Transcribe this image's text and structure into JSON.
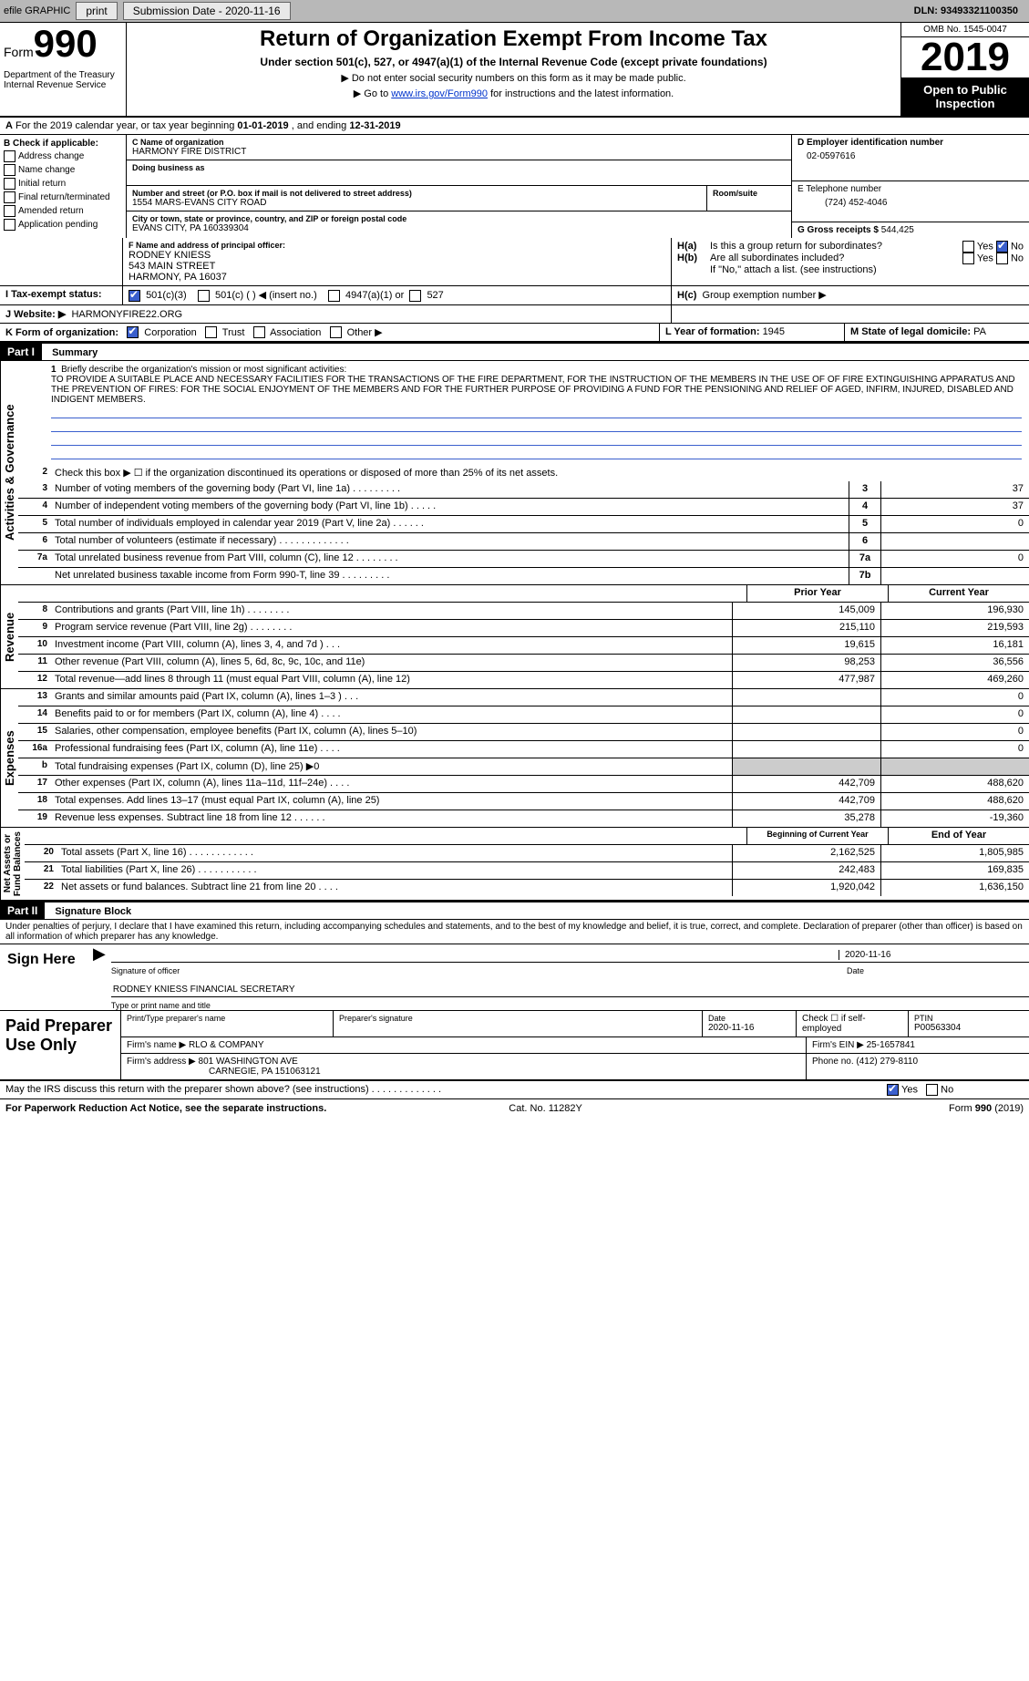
{
  "topbar": {
    "efile": "efile GRAPHIC",
    "print": "print",
    "submission_label": "Submission Date - ",
    "submission_date": "2020-11-16",
    "dln_label": "DLN: ",
    "dln": "93493321100350"
  },
  "header": {
    "form_label": "Form",
    "form_number": "990",
    "title": "Return of Organization Exempt From Income Tax",
    "subtitle": "Under section 501(c), 527, or 4947(a)(1) of the Internal Revenue Code (except private foundations)",
    "note1": "Do not enter social security numbers on this form as it may be made public.",
    "note2_pre": "Go to ",
    "note2_link": "www.irs.gov/Form990",
    "note2_post": " for instructions and the latest information.",
    "dept": "Department of the Treasury\nInternal Revenue Service",
    "omb": "OMB No. 1545-0047",
    "year": "2019",
    "inspection": "Open to Public Inspection"
  },
  "period": {
    "text_a": "For the 2019 calendar year, or tax year beginning ",
    "begin": "01-01-2019",
    "text_b": " , and ending ",
    "end": "12-31-2019"
  },
  "boxB": {
    "label": "B Check if applicable:",
    "opts": [
      "Address change",
      "Name change",
      "Initial return",
      "Final return/terminated",
      "Amended return",
      "Application pending"
    ]
  },
  "boxC": {
    "name_label": "C Name of organization",
    "name": "HARMONY FIRE DISTRICT",
    "dba_label": "Doing business as",
    "addr_label": "Number and street (or P.O. box if mail is not delivered to street address)",
    "room_label": "Room/suite",
    "addr": "1554 MARS-EVANS CITY ROAD",
    "city_label": "City or town, state or province, country, and ZIP or foreign postal code",
    "city": "EVANS CITY, PA  160339304"
  },
  "boxD": {
    "label": "D Employer identification number",
    "value": "02-0597616"
  },
  "boxE": {
    "label": "E Telephone number",
    "value": "(724) 452-4046"
  },
  "boxG": {
    "label": "G Gross receipts $ ",
    "value": "544,425"
  },
  "boxF": {
    "label": "F Name and address of principal officer:",
    "name": "RODNEY KNIESS",
    "street": "543 MAIN STREET",
    "csz": "HARMONY, PA  16037"
  },
  "boxH": {
    "a_label": "H(a)",
    "a_text": "Is this a group return for subordinates?",
    "b_label": "H(b)",
    "b_text": "Are all subordinates included?",
    "note": "If \"No,\" attach a list. (see instructions)",
    "c_label": "H(c)",
    "c_text": "Group exemption number ▶",
    "yes": "Yes",
    "no": "No"
  },
  "boxI": {
    "label": "I  Tax-exempt status:",
    "opt1": "501(c)(3)",
    "opt2": "501(c) (   ) ◀ (insert no.)",
    "opt3": "4947(a)(1) or",
    "opt4": "527"
  },
  "boxJ": {
    "label": "J  Website: ▶",
    "value": "HARMONYFIRE22.ORG"
  },
  "boxK": {
    "label": "K Form of organization:",
    "opts": [
      "Corporation",
      "Trust",
      "Association",
      "Other ▶"
    ]
  },
  "boxL": {
    "label": "L Year of formation: ",
    "value": "1945"
  },
  "boxM": {
    "label": "M State of legal domicile: ",
    "value": "PA"
  },
  "part1": {
    "label": "Part I",
    "title": "Summary"
  },
  "mission": {
    "num": "1",
    "label": "Briefly describe the organization's mission or most significant activities:",
    "text": "TO PROVIDE A SUITABLE PLACE AND NECESSARY FACILITIES FOR THE TRANSACTIONS OF THE FIRE DEPARTMENT, FOR THE INSTRUCTION OF THE MEMBERS IN THE USE OF OF FIRE EXTINGUISHING APPARATUS AND THE PREVENTION OF FIRES: FOR THE SOCIAL ENJOYMENT OF THE MEMBERS AND FOR THE FURTHER PURPOSE OF PROVIDING A FUND FOR THE PENSIONING AND RELIEF OF AGED, INFIRM, INJURED, DISABLED AND INDIGENT MEMBERS."
  },
  "lines": {
    "l2": {
      "num": "2",
      "desc": "Check this box ▶ ☐  if the organization discontinued its operations or disposed of more than 25% of its net assets."
    },
    "l3": {
      "num": "3",
      "desc": "Number of voting members of the governing body (Part VI, line 1a)  .   .   .   .   .   .   .   .   .",
      "box": "3",
      "val": "37"
    },
    "l4": {
      "num": "4",
      "desc": "Number of independent voting members of the governing body (Part VI, line 1b)  .   .   .   .   .",
      "box": "4",
      "val": "37"
    },
    "l5": {
      "num": "5",
      "desc": "Total number of individuals employed in calendar year 2019 (Part V, line 2a)  .   .   .   .   .   .",
      "box": "5",
      "val": "0"
    },
    "l6": {
      "num": "6",
      "desc": "Total number of volunteers (estimate if necessary)  .   .   .   .   .   .   .   .   .   .   .   .   .",
      "box": "6",
      "val": ""
    },
    "l7a": {
      "num": "7a",
      "desc": "Total unrelated business revenue from Part VIII, column (C), line 12  .   .   .   .   .   .   .   .",
      "box": "7a",
      "val": "0"
    },
    "l7b": {
      "num": "",
      "desc": "Net unrelated business taxable income from Form 990-T, line 39  .   .   .   .   .   .   .   .   .",
      "box": "7b",
      "val": ""
    }
  },
  "cols": {
    "prior": "Prior Year",
    "current": "Current Year"
  },
  "revenue": [
    {
      "num": "8",
      "desc": "Contributions and grants (Part VIII, line 1h)  .   .   .   .   .   .   .   .",
      "prior": "145,009",
      "current": "196,930"
    },
    {
      "num": "9",
      "desc": "Program service revenue (Part VIII, line 2g)  .   .   .   .   .   .   .   .",
      "prior": "215,110",
      "current": "219,593"
    },
    {
      "num": "10",
      "desc": "Investment income (Part VIII, column (A), lines 3, 4, and 7d )  .   .   .",
      "prior": "19,615",
      "current": "16,181"
    },
    {
      "num": "11",
      "desc": "Other revenue (Part VIII, column (A), lines 5, 6d, 8c, 9c, 10c, and 11e)",
      "prior": "98,253",
      "current": "36,556"
    },
    {
      "num": "12",
      "desc": "Total revenue—add lines 8 through 11 (must equal Part VIII, column (A), line 12)",
      "prior": "477,987",
      "current": "469,260"
    }
  ],
  "expenses": [
    {
      "num": "13",
      "desc": "Grants and similar amounts paid (Part IX, column (A), lines 1–3 )  .   .   .",
      "prior": "",
      "current": "0"
    },
    {
      "num": "14",
      "desc": "Benefits paid to or for members (Part IX, column (A), line 4)  .   .   .   .",
      "prior": "",
      "current": "0"
    },
    {
      "num": "15",
      "desc": "Salaries, other compensation, employee benefits (Part IX, column (A), lines 5–10)",
      "prior": "",
      "current": "0"
    },
    {
      "num": "16a",
      "desc": "Professional fundraising fees (Part IX, column (A), line 11e)  .   .   .   .",
      "prior": "",
      "current": "0"
    },
    {
      "num": "b",
      "desc": "Total fundraising expenses (Part IX, column (D), line 25) ▶0",
      "prior": "—",
      "current": "—"
    },
    {
      "num": "17",
      "desc": "Other expenses (Part IX, column (A), lines 11a–11d, 11f–24e)  .   .   .   .",
      "prior": "442,709",
      "current": "488,620"
    },
    {
      "num": "18",
      "desc": "Total expenses. Add lines 13–17 (must equal Part IX, column (A), line 25)",
      "prior": "442,709",
      "current": "488,620"
    },
    {
      "num": "19",
      "desc": "Revenue less expenses. Subtract line 18 from line 12  .   .   .   .   .   .",
      "prior": "35,278",
      "current": "-19,360"
    }
  ],
  "cols2": {
    "begin": "Beginning of Current Year",
    "end": "End of Year"
  },
  "netassets": [
    {
      "num": "20",
      "desc": "Total assets (Part X, line 16)  .   .   .   .   .   .   .   .   .   .   .   .",
      "prior": "2,162,525",
      "current": "1,805,985"
    },
    {
      "num": "21",
      "desc": "Total liabilities (Part X, line 26)  .   .   .   .   .   .   .   .   .   .   .",
      "prior": "242,483",
      "current": "169,835"
    },
    {
      "num": "22",
      "desc": "Net assets or fund balances. Subtract line 21 from line 20  .   .   .   .",
      "prior": "1,920,042",
      "current": "1,636,150"
    }
  ],
  "vlabels": {
    "gov": "Activities & Governance",
    "rev": "Revenue",
    "exp": "Expenses",
    "net": "Net Assets or\nFund Balances"
  },
  "part2": {
    "label": "Part II",
    "title": "Signature Block",
    "declaration": "Under penalties of perjury, I declare that I have examined this return, including accompanying schedules and statements, and to the best of my knowledge and belief, it is true, correct, and complete. Declaration of preparer (other than officer) is based on all information of which preparer has any knowledge."
  },
  "sign": {
    "here": "Sign Here",
    "sig_label": "Signature of officer",
    "date": "2020-11-16",
    "date_label": "Date",
    "name": "RODNEY KNIESS FINANCIAL SECRETARY",
    "name_label": "Type or print name and title"
  },
  "paid": {
    "title": "Paid Preparer Use Only",
    "print_label": "Print/Type preparer's name",
    "sig_label": "Preparer's signature",
    "date_label": "Date",
    "date": "2020-11-16",
    "check_label": "Check ☐ if self-employed",
    "ptin_label": "PTIN",
    "ptin": "P00563304",
    "firm_name_label": "Firm's name    ▶ ",
    "firm_name": "RLO & COMPANY",
    "firm_ein_label": "Firm's EIN ▶ ",
    "firm_ein": "25-1657841",
    "firm_addr_label": "Firm's address ▶ ",
    "firm_addr1": "801 WASHINGTON AVE",
    "firm_addr2": "CARNEGIE, PA  151063121",
    "phone_label": "Phone no. ",
    "phone": "(412) 279-8110"
  },
  "discuss": {
    "text": "May the IRS discuss this return with the preparer shown above? (see instructions)  .   .   .   .   .   .   .   .   .   .   .   .   .",
    "yes": "Yes",
    "no": "No"
  },
  "footer": {
    "left": "For Paperwork Reduction Act Notice, see the separate instructions.",
    "mid": "Cat. No. 11282Y",
    "right_a": "Form ",
    "right_b": "990",
    "right_c": " (2019)"
  }
}
